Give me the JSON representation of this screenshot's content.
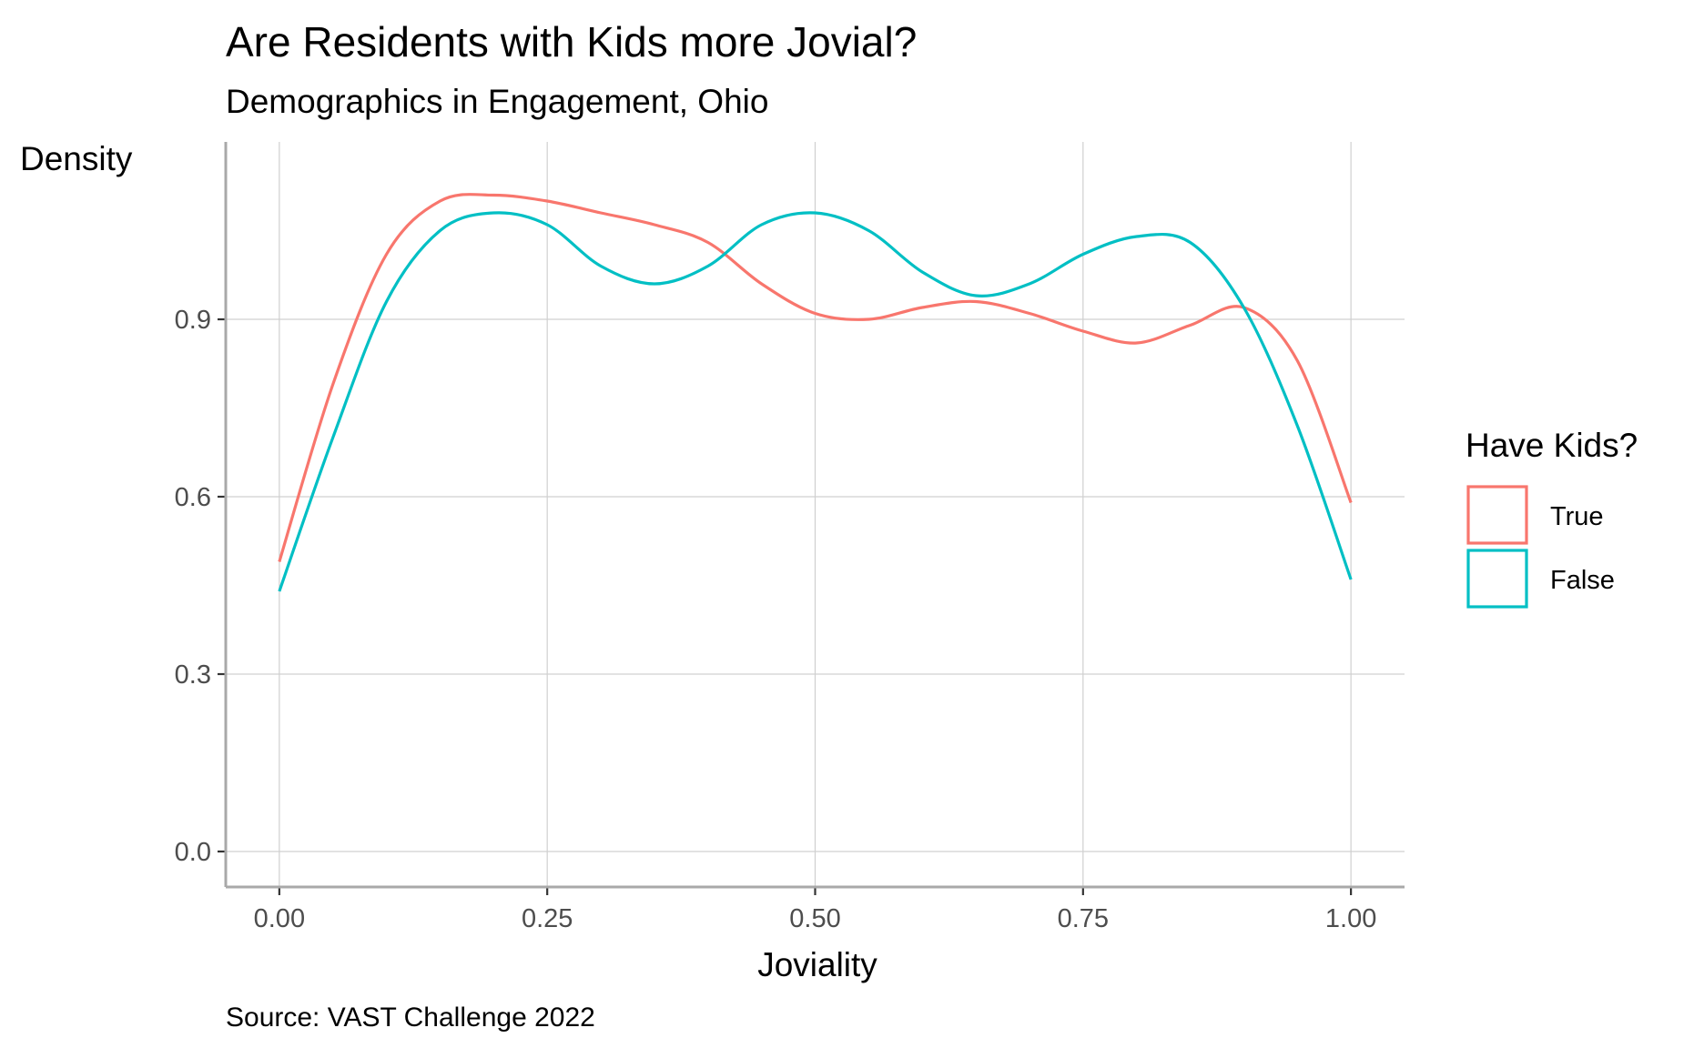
{
  "chart_data": {
    "type": "line",
    "title": "Are Residents with Kids more Jovial?",
    "subtitle": "Demographics in Engagement, Ohio",
    "xlabel": "Joviality",
    "ylabel": "Density",
    "caption": "Source: VAST Challenge 2022",
    "xlim": [
      -0.05,
      1.05
    ],
    "ylim": [
      -0.06,
      1.2
    ],
    "x_ticks": [
      0,
      0.25,
      0.5,
      0.75,
      1.0
    ],
    "x_tick_labels": [
      "0.00",
      "0.25",
      "0.50",
      "0.75",
      "1.00"
    ],
    "y_ticks": [
      0,
      0.3,
      0.6,
      0.9
    ],
    "y_tick_labels": [
      "0.0",
      "0.3",
      "0.6",
      "0.9"
    ],
    "grid": true,
    "legend": {
      "title": "Have Kids?",
      "position": "right"
    },
    "series": [
      {
        "name": "True",
        "color": "#F8766D",
        "x": [
          0.0,
          0.05,
          0.1,
          0.15,
          0.2,
          0.25,
          0.3,
          0.35,
          0.4,
          0.45,
          0.5,
          0.55,
          0.6,
          0.65,
          0.7,
          0.75,
          0.8,
          0.85,
          0.9,
          0.95,
          1.0
        ],
        "y": [
          0.49,
          0.79,
          1.01,
          1.1,
          1.11,
          1.1,
          1.08,
          1.06,
          1.03,
          0.96,
          0.91,
          0.9,
          0.92,
          0.93,
          0.91,
          0.88,
          0.86,
          0.89,
          0.92,
          0.83,
          0.59
        ]
      },
      {
        "name": "False",
        "color": "#00BFC4",
        "x": [
          0.0,
          0.05,
          0.1,
          0.15,
          0.2,
          0.25,
          0.3,
          0.35,
          0.4,
          0.45,
          0.5,
          0.55,
          0.6,
          0.65,
          0.7,
          0.75,
          0.8,
          0.85,
          0.9,
          0.95,
          1.0
        ],
        "y": [
          0.44,
          0.7,
          0.93,
          1.05,
          1.08,
          1.06,
          0.99,
          0.96,
          0.99,
          1.06,
          1.08,
          1.05,
          0.98,
          0.94,
          0.96,
          1.01,
          1.04,
          1.03,
          0.92,
          0.72,
          0.46
        ]
      }
    ]
  }
}
